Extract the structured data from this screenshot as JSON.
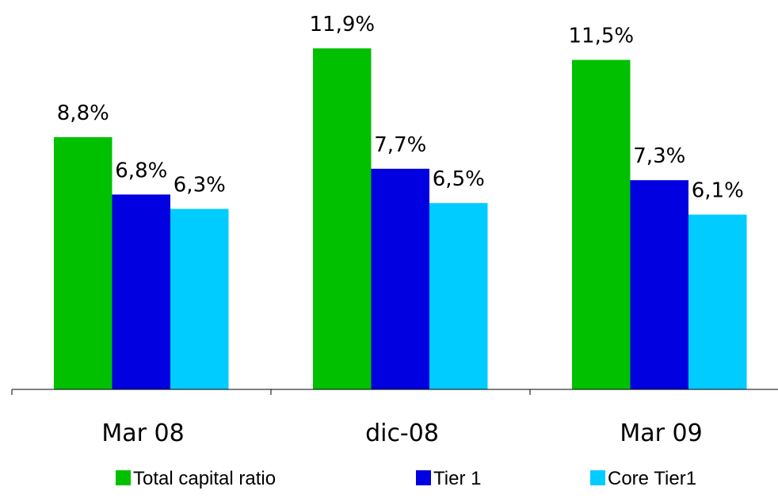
{
  "chart_data": {
    "type": "bar",
    "categories": [
      "Mar 08",
      "dic-08",
      "Mar 09"
    ],
    "series": [
      {
        "name": "Total capital ratio",
        "values": [
          8.8,
          11.9,
          11.5
        ],
        "labels": [
          "8,8%",
          "11,9%",
          "11,5%"
        ],
        "color": "#00c000"
      },
      {
        "name": "Tier 1",
        "values": [
          6.8,
          7.7,
          7.3
        ],
        "labels": [
          "6,8%",
          "7,7%",
          "7,3%"
        ],
        "color": "#0000e0"
      },
      {
        "name": "Core Tier1",
        "values": [
          6.3,
          6.5,
          6.1
        ],
        "labels": [
          "6,3%",
          "6,5%",
          "6,1%"
        ],
        "color": "#00ccff"
      }
    ],
    "ylim": [
      0,
      11.9
    ],
    "grid": false,
    "legend": "bottom",
    "title": "",
    "xlabel": "",
    "ylabel": ""
  }
}
